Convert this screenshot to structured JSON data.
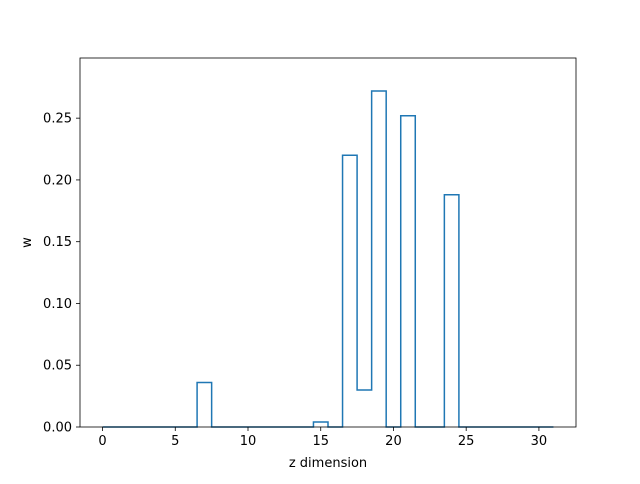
{
  "chart_data": {
    "type": "line",
    "drawstyle": "steps-mid",
    "title": "",
    "xlabel": "z dimension",
    "ylabel": "w",
    "xlim": [
      -1.55,
      32.55
    ],
    "ylim": [
      0,
      0.2987
    ],
    "xticks": [
      0,
      5,
      10,
      15,
      20,
      25,
      30
    ],
    "yticks": [
      0.0,
      0.05,
      0.1,
      0.15,
      0.2,
      0.25
    ],
    "ytick_labels": [
      "0.00",
      "0.05",
      "0.10",
      "0.15",
      "0.20",
      "0.25"
    ],
    "grid": false,
    "legend": "none",
    "series": [
      {
        "color": "#1f77b4",
        "x": [
          0,
          1,
          2,
          3,
          4,
          5,
          6,
          7,
          8,
          9,
          10,
          11,
          12,
          13,
          14,
          15,
          16,
          17,
          18,
          19,
          20,
          21,
          22,
          23,
          24,
          25,
          26,
          27,
          28,
          29,
          30,
          31
        ],
        "values": [
          0,
          0,
          0,
          0,
          0,
          0,
          0,
          0.036,
          0,
          0,
          0,
          0,
          0,
          0,
          0,
          0.004,
          0,
          0.22,
          0.03,
          0.272,
          0,
          0.252,
          0,
          0,
          0.188,
          0,
          0,
          0,
          0,
          0,
          0,
          0
        ]
      }
    ]
  }
}
